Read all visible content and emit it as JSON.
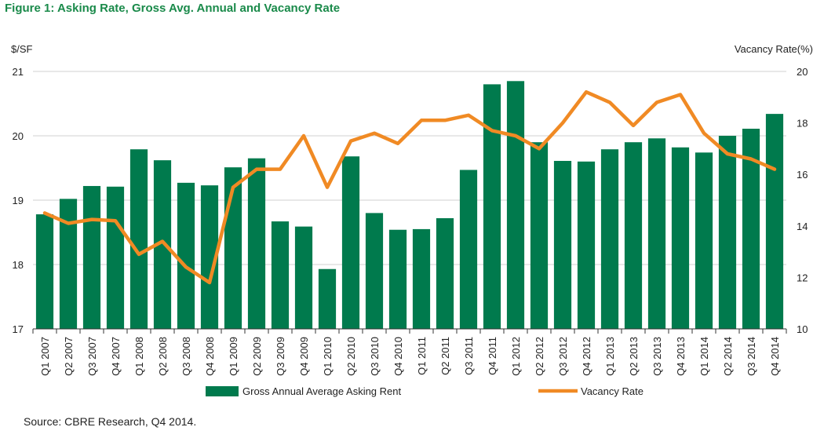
{
  "figure": {
    "title": "Figure 1: Asking Rate, Gross Avg. Annual and Vacancy Rate",
    "source": "Source: CBRE Research, Q4 2014."
  },
  "chart_data": {
    "type": "bar",
    "categories": [
      "Q1 2007",
      "Q2 2007",
      "Q3 2007",
      "Q4 2007",
      "Q1 2008",
      "Q2 2008",
      "Q3 2008",
      "Q4 2008",
      "Q1 2009",
      "Q2 2009",
      "Q3 2009",
      "Q4 2009",
      "Q1 2010",
      "Q2 2010",
      "Q3 2010",
      "Q4 2010",
      "Q1 2011",
      "Q2 2011",
      "Q3 2011",
      "Q4 2011",
      "Q1 2012",
      "Q2 2012",
      "Q3 2012",
      "Q4 2012",
      "Q1 2013",
      "Q2 2013",
      "Q3 2013",
      "Q4 2013",
      "Q1 2014",
      "Q2 2014",
      "Q3 2014",
      "Q4 2014"
    ],
    "series": [
      {
        "name": "Gross Annual Average Asking Rent",
        "type": "bar",
        "axis": "left",
        "color": "#007a4d",
        "values": [
          18.78,
          19.02,
          19.22,
          19.21,
          19.79,
          19.62,
          19.27,
          19.23,
          19.51,
          19.65,
          18.67,
          18.59,
          17.93,
          19.68,
          18.8,
          18.54,
          18.55,
          18.72,
          19.47,
          20.8,
          20.85,
          19.9,
          19.61,
          19.6,
          19.79,
          19.9,
          19.96,
          19.82,
          19.74,
          20.0,
          20.11,
          20.34
        ]
      },
      {
        "name": "Vacancy Rate",
        "type": "line",
        "axis": "right",
        "color": "#f08a24",
        "values": [
          14.5,
          14.1,
          14.25,
          14.2,
          12.9,
          13.4,
          12.4,
          11.8,
          15.5,
          16.2,
          16.2,
          17.5,
          15.5,
          17.3,
          17.6,
          17.2,
          18.1,
          18.1,
          18.3,
          17.7,
          17.5,
          17.0,
          18.0,
          19.2,
          18.8,
          17.9,
          18.8,
          19.1,
          17.6,
          16.8,
          16.6,
          16.2
        ]
      }
    ],
    "y_left": {
      "label": "$/SF",
      "min": 17,
      "max": 21,
      "ticks": [
        "17",
        "18",
        "19",
        "20",
        "21"
      ]
    },
    "y_right": {
      "label": "Vacancy Rate(%)",
      "min": 10,
      "max": 20,
      "ticks": [
        "10",
        "12",
        "14",
        "16",
        "18",
        "20"
      ]
    },
    "grid": true,
    "legend_position": "bottom"
  }
}
